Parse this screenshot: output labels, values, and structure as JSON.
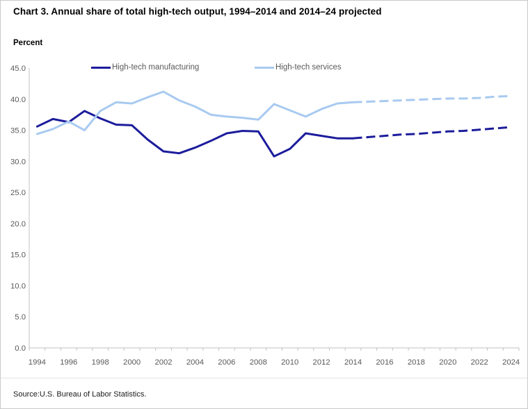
{
  "title": "Chart 3. Annual share of total high-tech output, 1994–2014 and 2014–24 projected",
  "y_axis_unit": "Percent",
  "source": "Source:U.S. Bureau of Labor Statistics.",
  "legend": [
    {
      "label": "High-tech manufacturing",
      "color": "#1c1c9c"
    },
    {
      "label": "High-tech services",
      "color": "#a8caf0"
    }
  ],
  "colors": {
    "axis": "#c0c0c0",
    "tick_label": "#595959",
    "manufacturing": "#1c1c9c",
    "services": "#a8caf0"
  },
  "chart_data": {
    "type": "line",
    "title": "Chart 3. Annual share of total high-tech output, 1994–2014 and 2014–24 projected",
    "ylabel": "Percent",
    "ylim": [
      0,
      45
    ],
    "y_ticks": [
      "45.0",
      "40.0",
      "35.0",
      "30.0",
      "25.0",
      "20.0",
      "15.0",
      "10.0",
      "5.0",
      "0.0"
    ],
    "x_ticks": [
      1994,
      1996,
      1998,
      2000,
      2002,
      2004,
      2006,
      2008,
      2010,
      2012,
      2014,
      2016,
      2018,
      2020,
      2022,
      2024
    ],
    "x_range": [
      1994,
      2024
    ],
    "grid": false,
    "legend_position": "top",
    "series": [
      {
        "name": "High-tech manufacturing",
        "color": "#1c1c9c",
        "solid": {
          "years": [
            1994,
            1995,
            1996,
            1997,
            1998,
            1999,
            2000,
            2001,
            2002,
            2003,
            2004,
            2005,
            2006,
            2007,
            2008,
            2009,
            2010,
            2011,
            2012,
            2013,
            2014
          ],
          "values": [
            35.6,
            36.8,
            36.3,
            38.1,
            36.9,
            35.9,
            35.8,
            33.5,
            31.6,
            31.3,
            32.2,
            33.3,
            34.5,
            34.9,
            34.8,
            30.8,
            32.0,
            34.5,
            34.1,
            33.7,
            33.7
          ]
        },
        "projected": {
          "years": [
            2014,
            2015,
            2016,
            2017,
            2018,
            2019,
            2020,
            2021,
            2022,
            2023,
            2024
          ],
          "values": [
            33.7,
            33.9,
            34.1,
            34.3,
            34.4,
            34.6,
            34.8,
            34.9,
            35.1,
            35.3,
            35.5
          ]
        }
      },
      {
        "name": "High-tech services",
        "color": "#a8caf0",
        "solid": {
          "years": [
            1994,
            1995,
            1996,
            1997,
            1998,
            1999,
            2000,
            2001,
            2002,
            2003,
            2004,
            2005,
            2006,
            2007,
            2008,
            2009,
            2010,
            2011,
            2012,
            2013,
            2014
          ],
          "values": [
            34.4,
            35.2,
            36.4,
            35.0,
            38.1,
            39.5,
            39.3,
            40.3,
            41.2,
            39.8,
            38.8,
            37.5,
            37.2,
            37.0,
            36.7,
            39.2,
            38.2,
            37.2,
            38.4,
            39.3,
            39.5
          ]
        },
        "projected": {
          "years": [
            2014,
            2015,
            2016,
            2017,
            2018,
            2019,
            2020,
            2021,
            2022,
            2023,
            2024
          ],
          "values": [
            39.5,
            39.6,
            39.7,
            39.8,
            39.9,
            40.0,
            40.1,
            40.1,
            40.2,
            40.4,
            40.5
          ]
        }
      }
    ]
  }
}
